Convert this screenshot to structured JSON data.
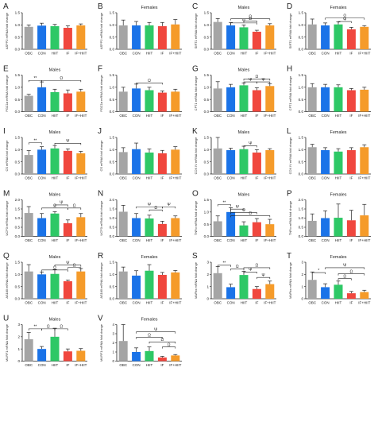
{
  "chart_data": {
    "type": "bar",
    "categories": [
      "OBC",
      "CON",
      "HIIT",
      "IF",
      "IF+HIIT"
    ],
    "colors": [
      "#a5a5a5",
      "#1a73e8",
      "#2ec866",
      "#f0473e",
      "#f59b2a"
    ],
    "panels": [
      {
        "letter": "A",
        "title": "",
        "ylabel": "ASPP2 mRNA fold change",
        "ylim": [
          0,
          1.5
        ],
        "ticks": [
          "0.0",
          "0.5",
          "1.0",
          "1.5"
        ],
        "values": [
          0.92,
          0.97,
          0.95,
          0.88,
          0.98
        ],
        "errors": [
          0.08,
          0.1,
          0.07,
          0.08,
          0.06
        ],
        "sigs": []
      },
      {
        "letter": "B",
        "title": "Females",
        "ylabel": "ASPP2 mRNA fold change",
        "ylim": [
          0,
          1.5
        ],
        "ticks": [
          "0.0",
          "0.5",
          "1.0",
          "1.5"
        ],
        "values": [
          0.98,
          0.98,
          0.98,
          0.95,
          1.02
        ],
        "errors": [
          0.22,
          0.16,
          0.12,
          0.15,
          0.2
        ],
        "sigs": []
      },
      {
        "letter": "C",
        "title": "Males",
        "ylabel": "SIRT1 mRNA fold change",
        "ylim": [
          0,
          1.5
        ],
        "ticks": [
          "0.0",
          "0.5",
          "1.0",
          "1.5"
        ],
        "values": [
          1.12,
          0.98,
          0.9,
          0.72,
          0.98
        ],
        "errors": [
          0.14,
          0.12,
          0.1,
          0.06,
          0.07
        ],
        "sigs": [
          {
            "a": 1,
            "b": 3,
            "y": 1.08,
            "sym": "Ψ"
          },
          {
            "a": 1,
            "b": 4,
            "y": 1.25,
            "sym": "Ω"
          },
          {
            "a": 2,
            "b": 3,
            "y": 1.16,
            "sym": "Ω"
          }
        ]
      },
      {
        "letter": "D",
        "title": "Females",
        "ylabel": "SIRT1 mRNA fold change",
        "ylim": [
          0,
          1.5
        ],
        "ticks": [
          "0.0",
          "0.5",
          "1.0",
          "1.5"
        ],
        "values": [
          1.02,
          0.98,
          1.02,
          0.82,
          0.92
        ],
        "errors": [
          0.22,
          0.1,
          0.1,
          0.08,
          0.05
        ],
        "sigs": [
          {
            "a": 2,
            "b": 3,
            "y": 1.14,
            "sym": "Ψ"
          },
          {
            "a": 1,
            "b": 4,
            "y": 1.28,
            "sym": "Ω"
          }
        ]
      },
      {
        "letter": "E",
        "title": "Males",
        "ylabel": "PGC1α mRNA fold change",
        "ylim": [
          0,
          1.5
        ],
        "ticks": [
          "0.0",
          "0.5",
          "1.0",
          "1.5"
        ],
        "values": [
          0.65,
          1.0,
          0.8,
          0.75,
          0.82
        ],
        "errors": [
          0.06,
          0.22,
          0.12,
          0.14,
          0.1
        ],
        "sigs": [
          {
            "a": 0,
            "b": 1,
            "y": 1.28,
            "sym": "**"
          },
          {
            "a": 1,
            "b": 4,
            "y": 1.28,
            "sym": "Ω"
          }
        ]
      },
      {
        "letter": "F",
        "title": "",
        "ylabel": "PGC1α mRNA fold change",
        "ylim": [
          0,
          1.5
        ],
        "ticks": [
          "0.0",
          "0.5",
          "1.0",
          "1.5"
        ],
        "values": [
          0.82,
          0.95,
          0.88,
          0.78,
          0.82
        ],
        "errors": [
          0.18,
          0.18,
          0.12,
          0.07,
          0.1
        ],
        "sigs": [
          {
            "a": 1,
            "b": 3,
            "y": 1.18,
            "sym": "Ω"
          }
        ]
      },
      {
        "letter": "G",
        "title": "Males",
        "ylabel": "CPT1 mRNA fold change",
        "ylim": [
          0,
          1.5
        ],
        "ticks": [
          "0.0",
          "0.5",
          "1.0",
          "1.5"
        ],
        "values": [
          0.95,
          1.0,
          1.08,
          0.88,
          1.05
        ],
        "errors": [
          0.28,
          0.12,
          0.1,
          0.1,
          0.1
        ],
        "sigs": [
          {
            "a": 2,
            "b": 3,
            "y": 1.22,
            "sym": "Ψ"
          },
          {
            "a": 2,
            "b": 4,
            "y": 1.34,
            "sym": "Ω"
          },
          {
            "a": 3,
            "b": 4,
            "y": 1.22,
            "sym": "Ψ"
          }
        ]
      },
      {
        "letter": "H",
        "title": "",
        "ylabel": "CPT1 mRNA fold change",
        "ylim": [
          0,
          1.5
        ],
        "ticks": [
          "0.0",
          "0.5",
          "1.0",
          "1.5"
        ],
        "values": [
          1.0,
          1.0,
          1.0,
          0.88,
          0.9
        ],
        "errors": [
          0.15,
          0.12,
          0.1,
          0.07,
          0.1
        ],
        "sigs": []
      },
      {
        "letter": "I",
        "title": "Males",
        "ylabel": "CS mRNA fold change",
        "ylim": [
          0,
          1.5
        ],
        "ticks": [
          "0.0",
          "0.5",
          "1.0",
          "1.5"
        ],
        "values": [
          0.78,
          1.0,
          1.05,
          0.95,
          0.85
        ],
        "errors": [
          0.18,
          0.12,
          0.12,
          0.08,
          0.08
        ],
        "sigs": [
          {
            "a": 0,
            "b": 1,
            "y": 1.28,
            "sym": "**"
          },
          {
            "a": 2,
            "b": 4,
            "y": 1.26,
            "sym": "Ψ"
          }
        ]
      },
      {
        "letter": "J",
        "title": "",
        "ylabel": "CS mRNA fold change",
        "ylim": [
          0,
          1.5
        ],
        "ticks": [
          "0.0",
          "0.5",
          "1.0",
          "1.5"
        ],
        "values": [
          0.9,
          1.02,
          0.88,
          0.85,
          1.0
        ],
        "errors": [
          0.18,
          0.25,
          0.15,
          0.12,
          0.12
        ],
        "sigs": []
      },
      {
        "letter": "K",
        "title": "Males",
        "ylabel": "COX IV mRNA fold change",
        "ylim": [
          0,
          1.5
        ],
        "ticks": [
          "0.0",
          "0.5",
          "1.0",
          "1.5"
        ],
        "values": [
          1.05,
          0.98,
          1.02,
          0.88,
          0.98
        ],
        "errors": [
          0.45,
          0.08,
          0.12,
          0.12,
          0.06
        ],
        "sigs": [
          {
            "a": 2,
            "b": 3,
            "y": 1.16,
            "sym": "Ψ"
          }
        ]
      },
      {
        "letter": "L",
        "title": "Females",
        "ylabel": "COX IV mRNA fold change",
        "ylim": [
          0,
          1.5
        ],
        "ticks": [
          "0.0",
          "0.5",
          "1.0",
          "1.5"
        ],
        "values": [
          1.1,
          0.98,
          0.92,
          0.98,
          1.1
        ],
        "errors": [
          0.12,
          0.1,
          0.12,
          0.1,
          0.1
        ],
        "sigs": []
      },
      {
        "letter": "M",
        "title": "Males",
        "ylabel": "UCP3 mRNA fold change",
        "ylim": [
          0,
          2.0
        ],
        "ticks": [
          "0.0",
          "0.5",
          "1.0",
          "1.5",
          "2.0"
        ],
        "values": [
          1.28,
          1.0,
          1.25,
          0.72,
          1.05
        ],
        "errors": [
          0.35,
          0.25,
          0.1,
          0.18,
          0.2
        ],
        "sigs": [
          {
            "a": 1,
            "b": 3,
            "y": 1.55,
            "sym": "Ω"
          },
          {
            "a": 2,
            "b": 3,
            "y": 1.72,
            "sym": "Ψ"
          },
          {
            "a": 3,
            "b": 4,
            "y": 1.55,
            "sym": "Ω"
          }
        ]
      },
      {
        "letter": "N",
        "title": "",
        "ylabel": "UCP3 mRNA fold change",
        "ylim": [
          0,
          2.0
        ],
        "ticks": [
          "0.0",
          "0.5",
          "1.0",
          "1.5",
          "2.0"
        ],
        "values": [
          1.35,
          1.0,
          0.98,
          0.68,
          1.0
        ],
        "errors": [
          0.35,
          0.25,
          0.18,
          0.15,
          0.12
        ],
        "sigs": [
          {
            "a": 2,
            "b": 3,
            "y": 1.45,
            "sym": "Ω"
          },
          {
            "a": 1,
            "b": 3,
            "y": 1.62,
            "sym": "Ψ"
          },
          {
            "a": 3,
            "b": 4,
            "y": 1.62,
            "sym": "Ψ"
          }
        ]
      },
      {
        "letter": "O",
        "title": "Males",
        "ylabel": "TNFα mRNA fold change",
        "ylim": [
          0,
          1.5
        ],
        "ticks": [
          "0.0",
          "0.5",
          "1.0",
          "1.5"
        ],
        "values": [
          0.62,
          1.0,
          0.45,
          0.58,
          0.5
        ],
        "errors": [
          0.22,
          0.18,
          0.15,
          0.15,
          0.2
        ],
        "sigs": [
          {
            "a": 0,
            "b": 1,
            "y": 1.3,
            "sym": "**"
          },
          {
            "a": 1,
            "b": 2,
            "y": 1.12,
            "sym": "Ψ"
          },
          {
            "a": 1,
            "b": 3,
            "y": 0.98,
            "sym": "Ω"
          },
          {
            "a": 1,
            "b": 4,
            "y": 0.85,
            "sym": "Ω"
          }
        ]
      },
      {
        "letter": "P",
        "title": "Females",
        "ylabel": "TNFα mRNA fold change",
        "ylim": [
          0,
          2.0
        ],
        "ticks": [
          "0.0",
          "0.5",
          "1.0",
          "1.5",
          "2.0"
        ],
        "values": [
          0.85,
          1.0,
          1.02,
          0.88,
          1.15
        ],
        "errors": [
          0.38,
          0.4,
          0.75,
          0.55,
          0.6
        ],
        "sigs": []
      },
      {
        "letter": "Q",
        "title": "Males",
        "ylabel": "AS160 mRNA fold change",
        "ylim": [
          0,
          1.5
        ],
        "ticks": [
          "0.0",
          "0.5",
          "1.0",
          "1.5"
        ],
        "values": [
          1.12,
          1.0,
          1.02,
          0.72,
          1.12
        ],
        "errors": [
          0.28,
          0.1,
          0.18,
          0.05,
          0.12
        ],
        "sigs": [
          {
            "a": 1,
            "b": 3,
            "y": 1.18,
            "sym": "Ω"
          },
          {
            "a": 2,
            "b": 4,
            "y": 1.38,
            "sym": "Ψ"
          },
          {
            "a": 3,
            "b": 4,
            "y": 1.28,
            "sym": "Ω"
          }
        ]
      },
      {
        "letter": "R",
        "title": "Females",
        "ylabel": "AS160 mRNA fold change",
        "ylim": [
          0,
          1.5
        ],
        "ticks": [
          "0.0",
          "0.5",
          "1.0",
          "1.5"
        ],
        "values": [
          1.12,
          0.95,
          1.15,
          0.98,
          1.08
        ],
        "errors": [
          0.18,
          0.2,
          0.25,
          0.1,
          0.08
        ],
        "sigs": []
      },
      {
        "letter": "S",
        "title": "",
        "ylabel": "MAFbx mRNA fold change",
        "ylim": [
          0,
          3
        ],
        "ticks": [
          "0",
          "1",
          "2",
          "3"
        ],
        "values": [
          2.1,
          0.95,
          1.95,
          0.8,
          1.2
        ],
        "errors": [
          0.55,
          0.25,
          0.3,
          0.2,
          0.25
        ],
        "sigs": [
          {
            "a": 0,
            "b": 1,
            "y": 2.75,
            "sym": "**"
          },
          {
            "a": 1,
            "b": 2,
            "y": 2.45,
            "sym": "Ω"
          },
          {
            "a": 2,
            "b": 3,
            "y": 2.2,
            "sym": "Ψ"
          },
          {
            "a": 2,
            "b": 4,
            "y": 2.55,
            "sym": "Ω"
          },
          {
            "a": 3,
            "b": 4,
            "y": 1.75,
            "sym": "Ψ"
          }
        ]
      },
      {
        "letter": "T",
        "title": "Females",
        "ylabel": "MAFbx mRNA fold change",
        "ylim": [
          0,
          3
        ],
        "ticks": [
          "0",
          "1",
          "2",
          "3"
        ],
        "values": [
          1.55,
          0.95,
          1.15,
          0.45,
          0.55
        ],
        "errors": [
          0.65,
          0.28,
          0.3,
          0.15,
          0.15
        ],
        "sigs": [
          {
            "a": 0,
            "b": 1,
            "y": 2.15,
            "sym": "*"
          },
          {
            "a": 1,
            "b": 4,
            "y": 2.55,
            "sym": "Ψ"
          },
          {
            "a": 2,
            "b": 3,
            "y": 1.65,
            "sym": "Ω"
          },
          {
            "a": 2,
            "b": 4,
            "y": 2.05,
            "sym": "Ω"
          }
        ]
      },
      {
        "letter": "U",
        "title": "Males",
        "ylabel": "MURF1 mRNA fold change",
        "ylim": [
          0,
          3
        ],
        "ticks": [
          "0",
          "1",
          "2",
          "3"
        ],
        "values": [
          1.8,
          1.0,
          2.0,
          0.8,
          0.85
        ],
        "errors": [
          0.55,
          0.2,
          0.7,
          0.2,
          0.18
        ],
        "sigs": [
          {
            "a": 0,
            "b": 1,
            "y": 2.65,
            "sym": "**"
          },
          {
            "a": 1,
            "b": 2,
            "y": 2.65,
            "sym": "Ω"
          },
          {
            "a": 2,
            "b": 3,
            "y": 2.65,
            "sym": "Ω"
          }
        ]
      },
      {
        "letter": "V",
        "title": "Females",
        "ylabel": "MURF1 mRNA fold change",
        "ylim": [
          0,
          4
        ],
        "ticks": [
          "0",
          "1",
          "2",
          "3",
          "4"
        ],
        "values": [
          2.2,
          1.0,
          1.1,
          0.4,
          0.62
        ],
        "errors": [
          1.8,
          0.45,
          0.45,
          0.12,
          0.1
        ],
        "sigs": [
          {
            "a": 1,
            "b": 4,
            "y": 3.2,
            "sym": "Ψ"
          },
          {
            "a": 1,
            "b": 3,
            "y": 2.6,
            "sym": "Ω"
          },
          {
            "a": 2,
            "b": 4,
            "y": 2.1,
            "sym": "Ω"
          },
          {
            "a": 3,
            "b": 4,
            "y": 1.55,
            "sym": "Ω"
          }
        ]
      }
    ]
  }
}
